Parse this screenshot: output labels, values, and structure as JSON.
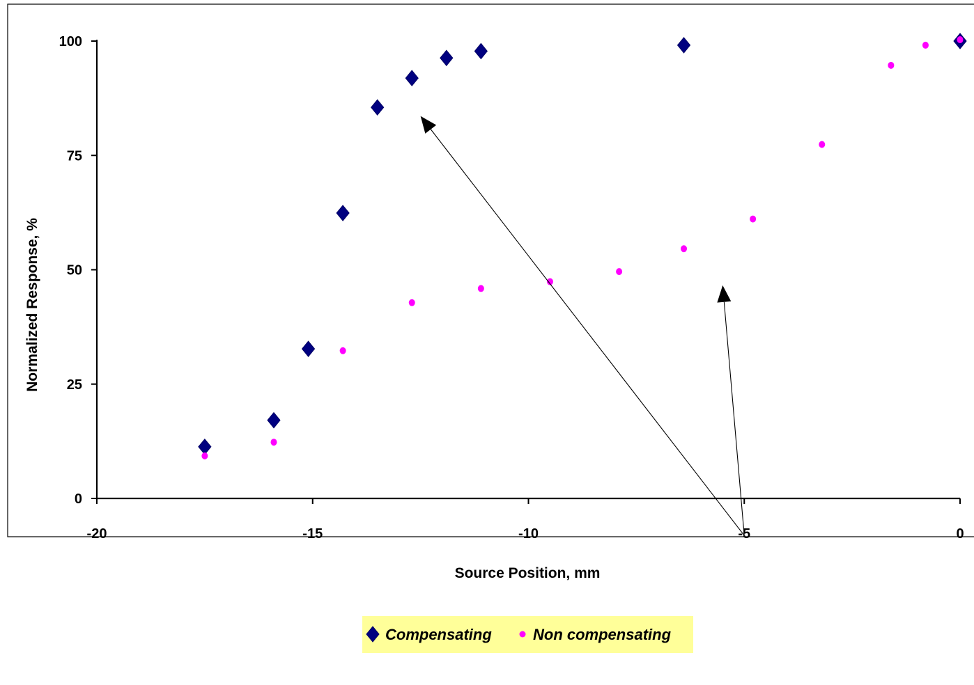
{
  "chart_data": {
    "type": "scatter",
    "title": "",
    "xlabel": "Source Position, mm",
    "ylabel": "Normalized Response, %",
    "xlim": [
      -20,
      0
    ],
    "ylim": [
      0,
      100
    ],
    "x_ticks": [
      "-20",
      "-15",
      "-10",
      "-5",
      "0"
    ],
    "y_ticks": [
      "0",
      "25",
      "50",
      "75",
      "100"
    ],
    "grid": false,
    "legend_position": "bottom",
    "series": [
      {
        "name": "Compensating",
        "marker": "diamond",
        "color": "#000080",
        "points": [
          {
            "x": -17.5,
            "y": 11.3
          },
          {
            "x": -15.9,
            "y": 17.1
          },
          {
            "x": -15.1,
            "y": 32.7
          },
          {
            "x": -14.3,
            "y": 62.4
          },
          {
            "x": -13.5,
            "y": 85.5
          },
          {
            "x": -12.7,
            "y": 91.9
          },
          {
            "x": -11.9,
            "y": 96.3
          },
          {
            "x": -11.1,
            "y": 97.8
          },
          {
            "x": -6.4,
            "y": 99.1
          },
          {
            "x": 0.0,
            "y": 100.0
          }
        ]
      },
      {
        "name": "Non compensating",
        "marker": "circle",
        "color": "#ff00ff",
        "points": [
          {
            "x": -17.5,
            "y": 9.3
          },
          {
            "x": -15.9,
            "y": 12.3
          },
          {
            "x": -14.3,
            "y": 32.3
          },
          {
            "x": -12.7,
            "y": 42.8
          },
          {
            "x": -11.1,
            "y": 45.9
          },
          {
            "x": -9.5,
            "y": 47.4
          },
          {
            "x": -7.9,
            "y": 49.6
          },
          {
            "x": -6.4,
            "y": 54.6
          },
          {
            "x": -4.8,
            "y": 61.1
          },
          {
            "x": -3.2,
            "y": 77.4
          },
          {
            "x": -1.6,
            "y": 94.7
          },
          {
            "x": -0.8,
            "y": 99.1
          },
          {
            "x": 0.0,
            "y": 100.3
          }
        ]
      }
    ],
    "annotations": [
      {
        "type": "arrow",
        "from": {
          "x": -5.0,
          "y": -8.1
        },
        "to": {
          "x": -12.5,
          "y": 83.6
        }
      },
      {
        "type": "arrow",
        "from": {
          "x": -5.0,
          "y": -8.1
        },
        "to": {
          "x": -5.5,
          "y": 46.6
        }
      }
    ],
    "legend_background": "#ffff99"
  }
}
